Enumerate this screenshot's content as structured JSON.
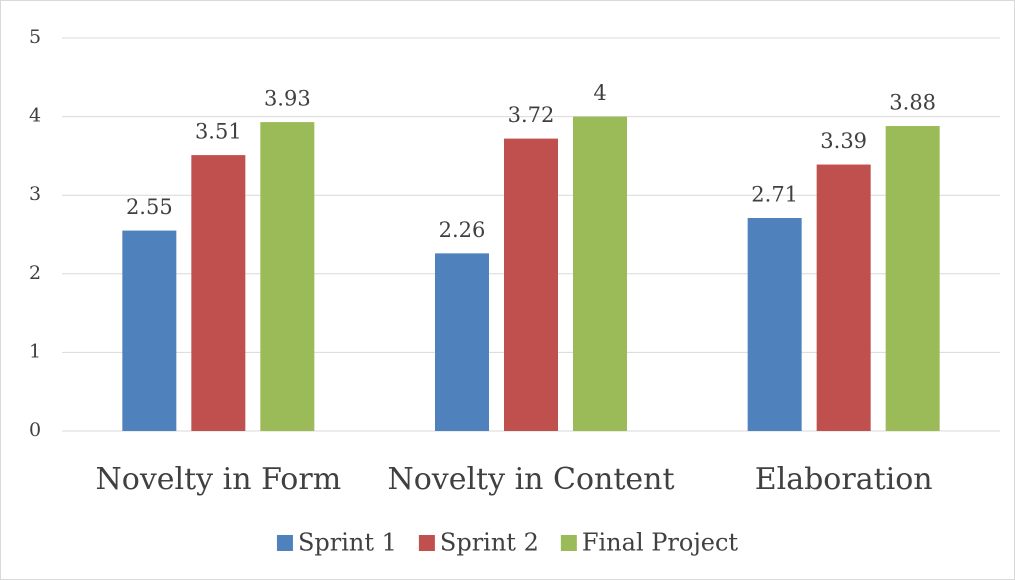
{
  "chart_data": {
    "type": "bar",
    "categories": [
      "Novelty in Form",
      "Novelty in Content",
      "Elaboration"
    ],
    "series": [
      {
        "name": "Sprint 1",
        "color": "#4f81bd",
        "values": [
          2.55,
          2.26,
          2.71
        ]
      },
      {
        "name": "Sprint 2",
        "color": "#c0504d",
        "values": [
          3.51,
          3.72,
          3.39
        ]
      },
      {
        "name": "Final Project",
        "color": "#9bbb59",
        "values": [
          3.93,
          4,
          3.88
        ]
      }
    ],
    "ylim": [
      0,
      5
    ],
    "yticks": [
      0,
      1,
      2,
      3,
      4,
      5
    ],
    "grid": true,
    "legend": "bottom"
  }
}
